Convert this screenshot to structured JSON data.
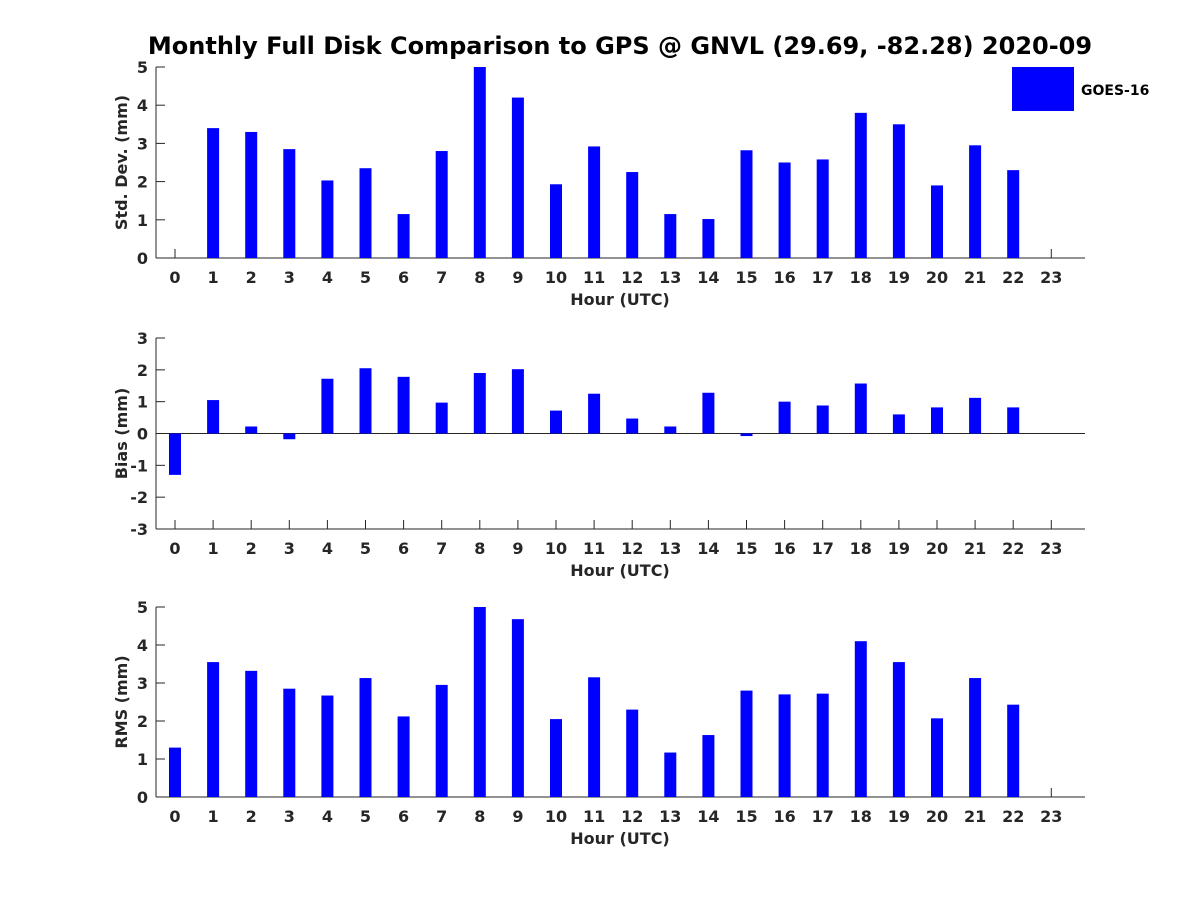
{
  "colors": {
    "bar": "#0000FF",
    "axis": "#262626",
    "background": "#FFFFFF"
  },
  "chart_data": [
    {
      "type": "bar",
      "title": "Monthly Full Disk Comparison to GPS @ GNVL (29.69, -82.28) 2020-09",
      "xlabel": "Hour (UTC)",
      "ylabel": "Std. Dev. (mm)",
      "ylim": [
        0,
        5
      ],
      "yticks": [
        0,
        1,
        2,
        3,
        4,
        5
      ],
      "grid": false,
      "legend": {
        "entries": [
          "GOES-16"
        ],
        "placement": "top-right"
      },
      "categories": [
        "0",
        "1",
        "2",
        "3",
        "4",
        "5",
        "6",
        "7",
        "8",
        "9",
        "10",
        "11",
        "12",
        "13",
        "14",
        "15",
        "16",
        "17",
        "18",
        "19",
        "20",
        "21",
        "22",
        "23"
      ],
      "series": [
        {
          "name": "GOES-16",
          "values": [
            null,
            3.4,
            3.3,
            2.85,
            2.03,
            2.35,
            1.15,
            2.8,
            5.0,
            4.2,
            1.93,
            2.92,
            2.25,
            1.15,
            1.02,
            2.82,
            2.5,
            2.58,
            3.8,
            3.5,
            1.9,
            2.95,
            2.3,
            null
          ]
        }
      ]
    },
    {
      "type": "bar",
      "title": "",
      "xlabel": "Hour (UTC)",
      "ylabel": "Bias (mm)",
      "ylim": [
        -3,
        3
      ],
      "yticks": [
        -3,
        -2,
        -1,
        0,
        1,
        2,
        3
      ],
      "grid": false,
      "categories": [
        "0",
        "1",
        "2",
        "3",
        "4",
        "5",
        "6",
        "7",
        "8",
        "9",
        "10",
        "11",
        "12",
        "13",
        "14",
        "15",
        "16",
        "17",
        "18",
        "19",
        "20",
        "21",
        "22",
        "23"
      ],
      "series": [
        {
          "name": "GOES-16",
          "values": [
            -1.3,
            1.05,
            0.22,
            -0.18,
            1.72,
            2.05,
            1.78,
            0.97,
            1.9,
            2.02,
            0.72,
            1.25,
            0.47,
            0.22,
            1.28,
            -0.08,
            1.0,
            0.88,
            1.57,
            0.6,
            0.82,
            1.12,
            0.82,
            null
          ]
        }
      ]
    },
    {
      "type": "bar",
      "title": "",
      "xlabel": "Hour (UTC)",
      "ylabel": "RMS (mm)",
      "ylim": [
        0,
        5
      ],
      "yticks": [
        0,
        1,
        2,
        3,
        4,
        5
      ],
      "grid": false,
      "categories": [
        "0",
        "1",
        "2",
        "3",
        "4",
        "5",
        "6",
        "7",
        "8",
        "9",
        "10",
        "11",
        "12",
        "13",
        "14",
        "15",
        "16",
        "17",
        "18",
        "19",
        "20",
        "21",
        "22",
        "23"
      ],
      "series": [
        {
          "name": "GOES-16",
          "values": [
            1.3,
            3.55,
            3.32,
            2.85,
            2.67,
            3.13,
            2.12,
            2.95,
            5.0,
            4.68,
            2.05,
            3.15,
            2.3,
            1.17,
            1.63,
            2.8,
            2.7,
            2.72,
            4.1,
            3.55,
            2.07,
            3.13,
            2.43,
            null
          ]
        }
      ]
    }
  ]
}
